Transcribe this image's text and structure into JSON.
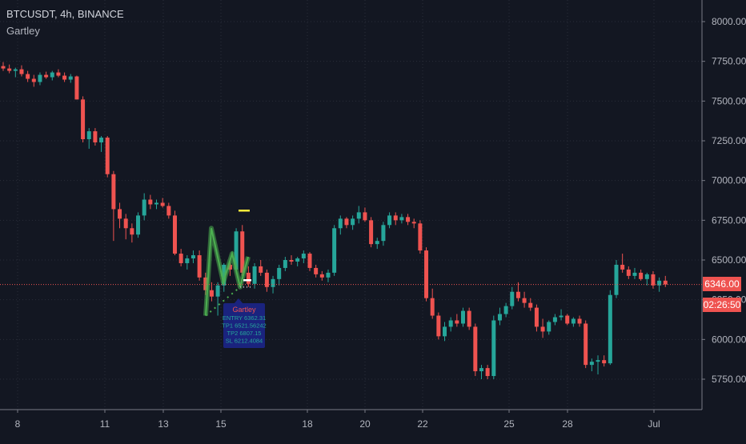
{
  "header": {
    "symbol_line": "BTCUSDT, 4h, BINANCE",
    "indicator": "Gartley"
  },
  "price_badge": {
    "price": "6346.00",
    "countdown": "02:26:50",
    "color": "#ef5350"
  },
  "colors": {
    "up": "#26a69a",
    "down": "#ef5350",
    "pattern": "#4caf50",
    "marker": "#ffeb3b",
    "label_bg": "#1a237e"
  },
  "pattern_label": {
    "title": "Gartley",
    "lines": [
      "ENTRY 6362.31",
      "TP1 6521.56242",
      "TP2 6807.15",
      "SL 6212.4084"
    ]
  },
  "chart_data": {
    "type": "candlestick",
    "title": "",
    "xlabel": "",
    "ylabel": "",
    "ylim": [
      5640,
      8120
    ],
    "y_ticks": [
      "5750.00",
      "6000.00",
      "6250.00",
      "6500.00",
      "6750.00",
      "7000.00",
      "7250.00",
      "7500.00",
      "7750.00",
      "8000.00"
    ],
    "x_ticks": [
      "8",
      "11",
      "13",
      "15",
      "18",
      "20",
      "22",
      "25",
      "28",
      "Jul"
    ],
    "grid": true,
    "series": [
      {
        "name": "",
        "ohlc": [
          [
            7720,
            7745,
            7690,
            7705
          ],
          [
            7705,
            7730,
            7675,
            7690
          ],
          [
            7690,
            7710,
            7650,
            7700
          ],
          [
            7700,
            7725,
            7655,
            7670
          ],
          [
            7670,
            7690,
            7620,
            7640
          ],
          [
            7640,
            7665,
            7590,
            7620
          ],
          [
            7620,
            7680,
            7600,
            7665
          ],
          [
            7665,
            7685,
            7640,
            7650
          ],
          [
            7650,
            7690,
            7630,
            7680
          ],
          [
            7680,
            7700,
            7650,
            7660
          ],
          [
            7660,
            7680,
            7620,
            7635
          ],
          [
            7635,
            7670,
            7615,
            7655
          ],
          [
            7655,
            7660,
            7510,
            7510
          ],
          [
            7510,
            7530,
            7240,
            7260
          ],
          [
            7260,
            7330,
            7200,
            7310
          ],
          [
            7310,
            7330,
            7220,
            7240
          ],
          [
            7240,
            7280,
            7180,
            7270
          ],
          [
            7270,
            7280,
            7020,
            7040
          ],
          [
            7040,
            7060,
            6620,
            6820
          ],
          [
            6820,
            6860,
            6700,
            6760
          ],
          [
            6760,
            6790,
            6630,
            6700
          ],
          [
            6700,
            6730,
            6610,
            6660
          ],
          [
            6660,
            6800,
            6640,
            6780
          ],
          [
            6780,
            6920,
            6750,
            6880
          ],
          [
            6880,
            6910,
            6820,
            6850
          ],
          [
            6850,
            6880,
            6820,
            6860
          ],
          [
            6860,
            6890,
            6830,
            6840
          ],
          [
            6840,
            6860,
            6760,
            6780
          ],
          [
            6780,
            6810,
            6530,
            6540
          ],
          [
            6540,
            6570,
            6460,
            6480
          ],
          [
            6480,
            6530,
            6440,
            6510
          ],
          [
            6510,
            6560,
            6480,
            6530
          ],
          [
            6530,
            6560,
            6370,
            6390
          ],
          [
            6390,
            6420,
            6280,
            6310
          ],
          [
            6310,
            6360,
            6240,
            6270
          ],
          [
            6270,
            6360,
            6150,
            6340
          ],
          [
            6340,
            6480,
            6300,
            6470
          ],
          [
            6470,
            6510,
            6400,
            6440
          ],
          [
            6440,
            6700,
            6420,
            6680
          ],
          [
            6680,
            6720,
            6400,
            6420
          ],
          [
            6420,
            6460,
            6330,
            6350
          ],
          [
            6350,
            6480,
            6320,
            6460
          ],
          [
            6460,
            6500,
            6400,
            6420
          ],
          [
            6420,
            6440,
            6300,
            6330
          ],
          [
            6330,
            6400,
            6290,
            6380
          ],
          [
            6380,
            6470,
            6340,
            6450
          ],
          [
            6450,
            6520,
            6430,
            6500
          ],
          [
            6500,
            6530,
            6470,
            6490
          ],
          [
            6490,
            6520,
            6460,
            6510
          ],
          [
            6510,
            6560,
            6480,
            6540
          ],
          [
            6540,
            6550,
            6430,
            6450
          ],
          [
            6450,
            6470,
            6390,
            6410
          ],
          [
            6410,
            6430,
            6370,
            6390
          ],
          [
            6390,
            6440,
            6360,
            6420
          ],
          [
            6420,
            6720,
            6400,
            6700
          ],
          [
            6700,
            6780,
            6660,
            6760
          ],
          [
            6760,
            6770,
            6700,
            6720
          ],
          [
            6720,
            6780,
            6690,
            6760
          ],
          [
            6760,
            6840,
            6730,
            6800
          ],
          [
            6800,
            6830,
            6740,
            6750
          ],
          [
            6750,
            6770,
            6580,
            6600
          ],
          [
            6600,
            6640,
            6570,
            6620
          ],
          [
            6620,
            6740,
            6590,
            6720
          ],
          [
            6720,
            6800,
            6700,
            6780
          ],
          [
            6780,
            6800,
            6720,
            6750
          ],
          [
            6750,
            6790,
            6730,
            6770
          ],
          [
            6770,
            6790,
            6720,
            6740
          ],
          [
            6740,
            6760,
            6700,
            6730
          ],
          [
            6730,
            6750,
            6540,
            6560
          ],
          [
            6560,
            6580,
            6240,
            6260
          ],
          [
            6260,
            6320,
            6130,
            6150
          ],
          [
            6150,
            6170,
            6000,
            6020
          ],
          [
            6020,
            6110,
            5990,
            6080
          ],
          [
            6080,
            6140,
            6050,
            6120
          ],
          [
            6120,
            6160,
            6080,
            6100
          ],
          [
            6100,
            6200,
            6080,
            6180
          ],
          [
            6180,
            6200,
            6060,
            6080
          ],
          [
            6080,
            6100,
            5770,
            5800
          ],
          [
            5800,
            5840,
            5750,
            5820
          ],
          [
            5820,
            5840,
            5750,
            5770
          ],
          [
            5770,
            6150,
            5750,
            6120
          ],
          [
            6120,
            6200,
            6090,
            6160
          ],
          [
            6160,
            6230,
            6140,
            6210
          ],
          [
            6210,
            6330,
            6190,
            6300
          ],
          [
            6300,
            6360,
            6240,
            6260
          ],
          [
            6260,
            6300,
            6200,
            6230
          ],
          [
            6230,
            6260,
            6180,
            6200
          ],
          [
            6200,
            6220,
            6050,
            6080
          ],
          [
            6080,
            6130,
            6010,
            6050
          ],
          [
            6050,
            6120,
            6030,
            6110
          ],
          [
            6110,
            6160,
            6090,
            6140
          ],
          [
            6140,
            6190,
            6120,
            6150
          ],
          [
            6150,
            6160,
            6090,
            6100
          ],
          [
            6100,
            6140,
            6080,
            6130
          ],
          [
            6130,
            6150,
            6080,
            6100
          ],
          [
            6100,
            6120,
            5820,
            5840
          ],
          [
            5840,
            5880,
            5800,
            5860
          ],
          [
            5860,
            5900,
            5780,
            5870
          ],
          [
            5870,
            5900,
            5830,
            5850
          ],
          [
            5850,
            6310,
            5840,
            6280
          ],
          [
            6280,
            6500,
            6260,
            6470
          ],
          [
            6470,
            6540,
            6420,
            6440
          ],
          [
            6440,
            6460,
            6380,
            6400
          ],
          [
            6400,
            6450,
            6380,
            6420
          ],
          [
            6420,
            6440,
            6370,
            6380
          ],
          [
            6380,
            6420,
            6340,
            6410
          ],
          [
            6410,
            6430,
            6320,
            6340
          ],
          [
            6340,
            6390,
            6300,
            6370
          ],
          [
            6370,
            6400,
            6330,
            6346
          ]
        ]
      }
    ],
    "annotations": [
      "Gartley"
    ]
  }
}
